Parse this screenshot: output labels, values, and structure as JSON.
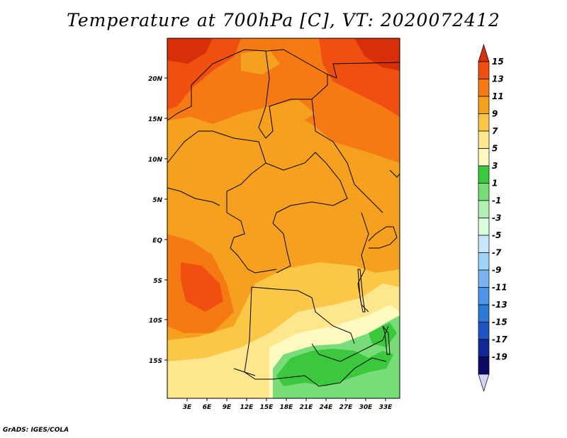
{
  "title": "Temperature at 700hPa [C], VT: 2020072412",
  "credit": "GrADS: IGES/COLA",
  "map": {
    "lon_labels": [
      "3E",
      "6E",
      "9E",
      "12E",
      "15E",
      "18E",
      "21E",
      "24E",
      "27E",
      "30E",
      "33E"
    ],
    "lat_labels": [
      "20N",
      "15N",
      "10N",
      "5N",
      "EQ",
      "5S",
      "10S",
      "15S"
    ]
  },
  "colorbar": {
    "levels": [
      "15",
      "13",
      "11",
      "9",
      "7",
      "5",
      "3",
      "1",
      "-1",
      "-3",
      "-5",
      "-7",
      "-9",
      "-11",
      "-13",
      "-15",
      "-17",
      "-19"
    ],
    "colors": [
      "#d92e0a",
      "#f0500f",
      "#f57a14",
      "#f5a01e",
      "#fac846",
      "#fde68c",
      "#fefac0",
      "#3cc83c",
      "#78dc78",
      "#b4f0b4",
      "#dcfadc",
      "#c8e6fa",
      "#a0d2fa",
      "#78b4f0",
      "#4b96eb",
      "#2d78d7",
      "#1e55c3",
      "#0f2896",
      "#0a0a64",
      "#d2d2f5"
    ]
  }
}
